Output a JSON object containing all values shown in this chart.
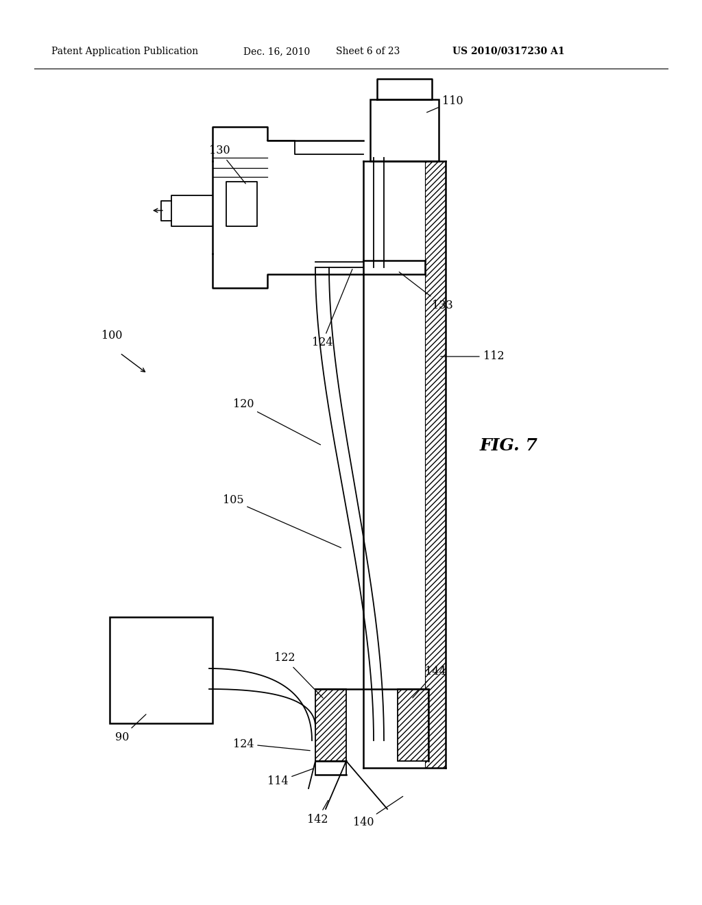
{
  "background_color": "#ffffff",
  "header_text": "Patent Application Publication",
  "header_date": "Dec. 16, 2010",
  "header_sheet": "Sheet 6 of 23",
  "header_patent": "US 2010/0317230 A1",
  "fig_label": "FIG. 7"
}
